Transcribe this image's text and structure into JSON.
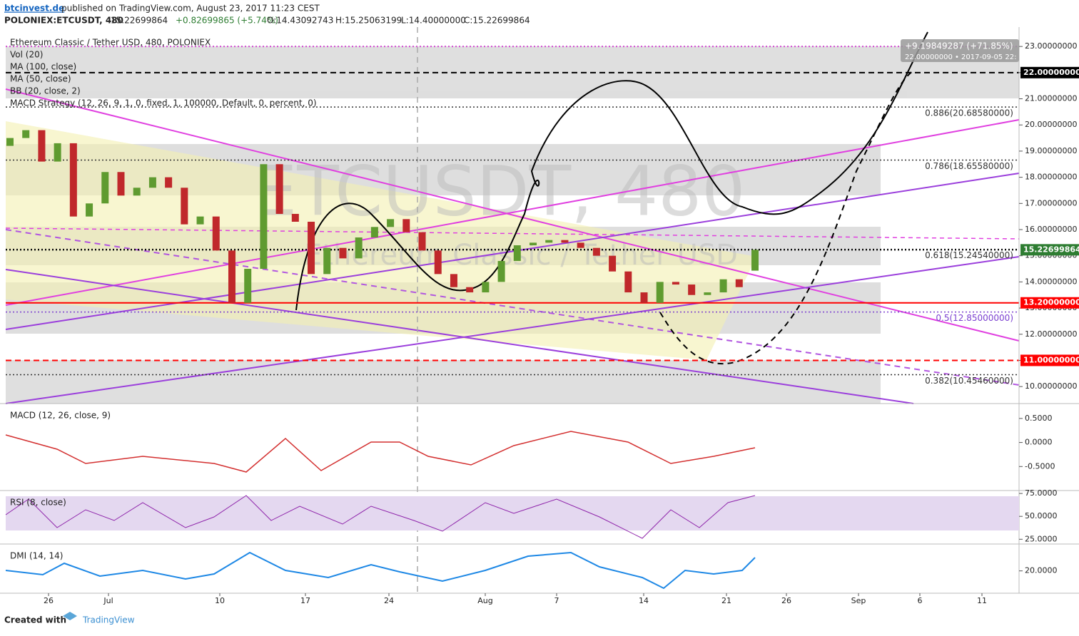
{
  "header": {
    "author": "btcinvest.de",
    "published": "published on TradingView.com, August 23, 2017 11:23 CEST",
    "symbol": "POLONIEX:ETCUSDT, 480",
    "last": "15.22699864",
    "change": "+0.82699865 (+5.74%)",
    "open": "O:14.43092743",
    "high": "H:15.25063199",
    "low": "L:14.40000000",
    "close": "C:15.22699864"
  },
  "legend": [
    "Ethereum Classic / Tether USD, 480, POLONIEX",
    "Vol (20)",
    "MA (100, close)",
    "MA (50, close)",
    "BB (20, close, 2)",
    "MACD Strategy (12, 26, 9, 1, 0, fixed, 1, 100000, Default, 0, percent, 0)"
  ],
  "watermark": {
    "symbol": "ETCUSDT, 480",
    "name": "Ethereum Classic / Tether USD"
  },
  "measure": {
    "change": "+9.19849287 (+71.85%)",
    "target": "22.00000000 • 2017-09-05 22:"
  },
  "chart_data": {
    "type": "candlestick",
    "ylim": [
      9.35,
      23.74
    ],
    "yticks": [
      {
        "value": 10,
        "label": "10.00000000"
      },
      {
        "value": 11,
        "label": "11.00000000"
      },
      {
        "value": 12,
        "label": "12.00000000"
      },
      {
        "value": 13,
        "label": "13.00000000"
      },
      {
        "value": 14,
        "label": "14.00000000"
      },
      {
        "value": 15,
        "label": "15.00000000"
      },
      {
        "value": 16,
        "label": "16.00000000"
      },
      {
        "value": 17,
        "label": "17.00000000"
      },
      {
        "value": 18,
        "label": "18.00000000"
      },
      {
        "value": 19,
        "label": "19.00000000"
      },
      {
        "value": 20,
        "label": "20.00000000"
      },
      {
        "value": 21,
        "label": "21.00000000"
      },
      {
        "value": 22,
        "label": "22.00000000"
      },
      {
        "value": 23,
        "label": "23.00000000"
      }
    ],
    "xticks": [
      "26",
      "Jul",
      "10",
      "17",
      "24",
      "Aug",
      "7",
      "14",
      "21",
      "26",
      "Sep",
      "6",
      "11"
    ],
    "open": [
      19.2,
      19.5,
      19.8,
      18.6,
      19.3,
      16.5,
      17.0,
      18.2,
      17.3,
      17.6,
      18.0,
      17.6,
      16.2,
      16.5,
      15.2,
      13.2,
      14.5,
      18.5,
      16.6,
      16.3,
      14.3,
      15.3,
      14.9,
      15.7,
      16.1,
      16.4,
      15.9,
      15.2,
      14.3,
      13.8,
      13.6,
      14.0,
      14.8,
      15.4,
      15.5,
      15.6,
      15.5,
      15.3,
      15.0,
      14.4,
      13.6,
      13.2,
      14.0,
      13.9,
      13.5,
      13.6,
      14.1,
      14.43
    ],
    "close": [
      19.5,
      19.8,
      18.6,
      19.3,
      16.5,
      17.0,
      18.2,
      17.3,
      17.6,
      18.0,
      17.6,
      16.2,
      16.5,
      15.2,
      13.2,
      14.5,
      18.5,
      16.6,
      16.3,
      14.3,
      15.3,
      14.9,
      15.7,
      16.1,
      16.4,
      15.9,
      15.2,
      14.3,
      13.8,
      13.6,
      14.0,
      14.8,
      15.4,
      15.5,
      15.6,
      15.5,
      15.3,
      15.0,
      14.4,
      13.6,
      13.2,
      14.0,
      13.9,
      13.5,
      13.6,
      14.1,
      13.8,
      15.227
    ],
    "up_color": "#5f9b30",
    "down_color": "#c0282b",
    "levels": [
      {
        "value": 23,
        "color": "#d24bd2",
        "dash": "2,3"
      },
      {
        "value": 22,
        "color": "#000000",
        "dash": "8,5",
        "label": {
          "value": 22,
          "label": "22.00000000"
        }
      },
      {
        "value": 13.2,
        "color": "#ff0000",
        "dash": "",
        "label": {
          "value": 13.2,
          "label": "13.20000000"
        }
      },
      {
        "value": 11,
        "color": "#ff0000",
        "dash": "8,5",
        "label": {
          "value": 11,
          "label": "11.00000000"
        }
      },
      {
        "value": 15.22699864,
        "color": "#000000",
        "dash": "2,3",
        "label": {
          "value": 15.22699864,
          "label": "15.22699864"
        },
        "badge": "#2e7d32"
      }
    ],
    "fibs": [
      {
        "value": 20.6858,
        "label": "0.886(20.68580000)"
      },
      {
        "value": 18.6558,
        "label": "0.786(18.65580000)"
      },
      {
        "value": 15.2454,
        "label": "0.618(15.24540000)"
      },
      {
        "value": 12.85,
        "label": "0.5(12.85000000)",
        "color": "#7b3fd0"
      },
      {
        "value": 10.4546,
        "label": "0.382(10.45460000)"
      }
    ],
    "panes": [
      {
        "title": "MACD (12, 26, close, 9)",
        "ylim": [
          -1.0,
          0.78
        ],
        "yticks": [
          {
            "value": 0.5,
            "label": "0.5000"
          },
          {
            "value": 0,
            "label": "0.0000"
          },
          {
            "value": -0.5,
            "label": "-0.5000"
          }
        ]
      },
      {
        "title": "RSI (8, close)",
        "ylim": [
          19.8,
          76.6
        ],
        "yticks": [
          {
            "value": 75,
            "label": "75.0000"
          },
          {
            "value": 50,
            "label": "50.0000"
          },
          {
            "value": 25,
            "label": "25.0000"
          }
        ]
      },
      {
        "title": "DMI (14, 14)",
        "ylim": [
          10.6,
          30.7
        ],
        "yticks": [
          {
            "value": 20,
            "label": "20.0000"
          }
        ]
      }
    ]
  },
  "footer": {
    "created": "Created with",
    "brand": "TradingView"
  }
}
